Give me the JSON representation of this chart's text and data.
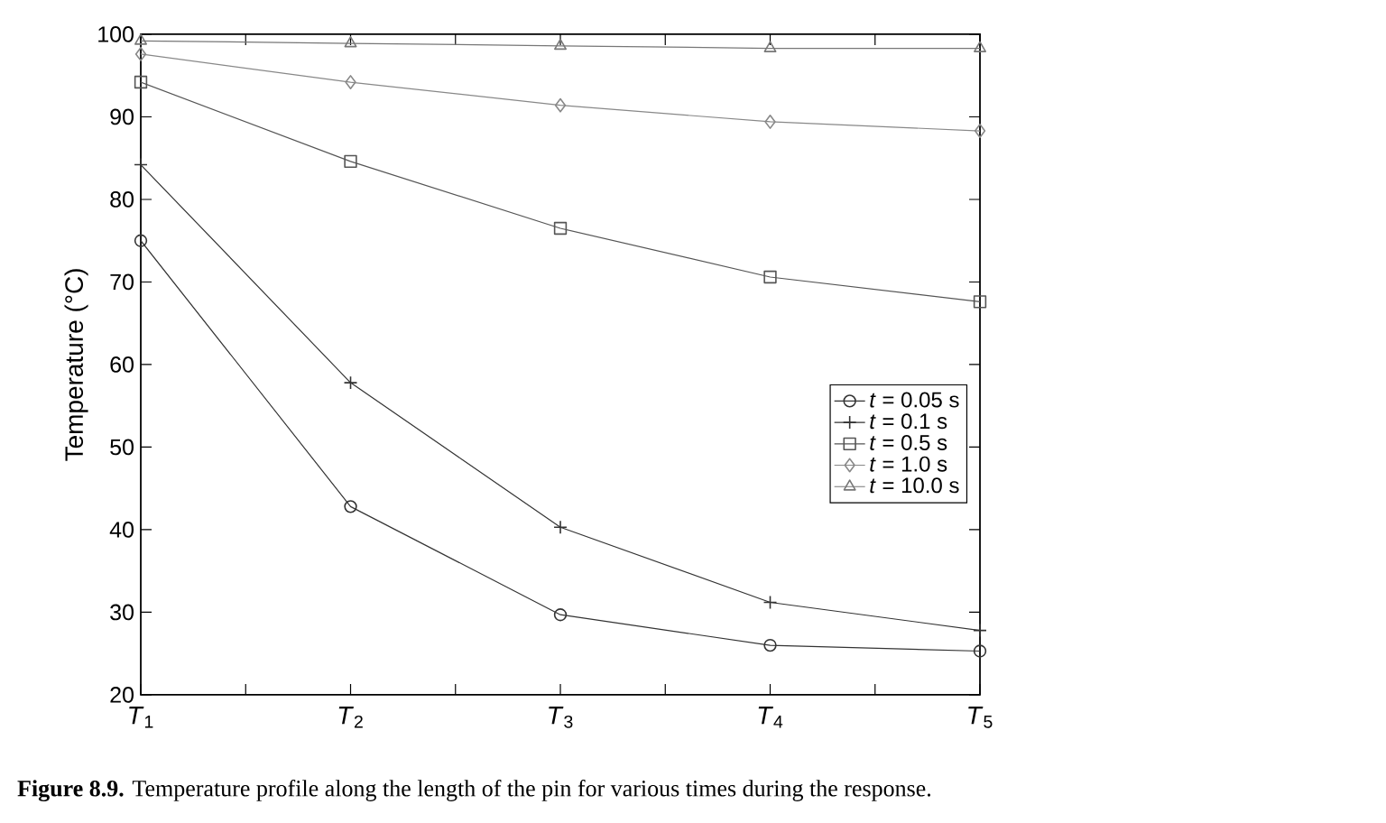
{
  "chart_data": {
    "type": "line",
    "ylabel": "Temperature (°C)",
    "categories": [
      "*T*$_{1}$",
      "*T*$_{2}$",
      "*T*$_{3}$",
      "*T*$_{4}$",
      "*T*$_{5}$"
    ],
    "ylim": [
      20,
      100
    ],
    "yticks": [
      20,
      30,
      40,
      50,
      60,
      70,
      80,
      90,
      100
    ],
    "series": [
      {
        "name": "*t* = 0.05 s",
        "color": "#333333",
        "marker": "circle",
        "values": [
          75,
          42.8,
          29.7,
          26,
          25.3
        ]
      },
      {
        "name": "*t* = 0.1 s",
        "color": "#333333",
        "marker": "cross",
        "values": [
          84.2,
          57.8,
          40.3,
          31.2,
          27.8
        ]
      },
      {
        "name": "*t* = 0.5 s",
        "color": "#555555",
        "marker": "square",
        "values": [
          94.2,
          84.6,
          76.5,
          70.6,
          67.6
        ]
      },
      {
        "name": "*t* = 1.0 s",
        "color": "#888888",
        "marker": "diamond",
        "values": [
          97.6,
          94.2,
          91.4,
          89.4,
          88.3
        ]
      },
      {
        "name": "*t* = 10.0 s",
        "color": "#777777",
        "marker": "triangle",
        "values": [
          99.2,
          98.9,
          98.6,
          98.3,
          98.3
        ]
      }
    ],
    "legend": "right",
    "grid": false,
    "annotations": [
      "**Figure 8.9.** Temperature profile along the length of the pin for various times during the response."
    ]
  }
}
